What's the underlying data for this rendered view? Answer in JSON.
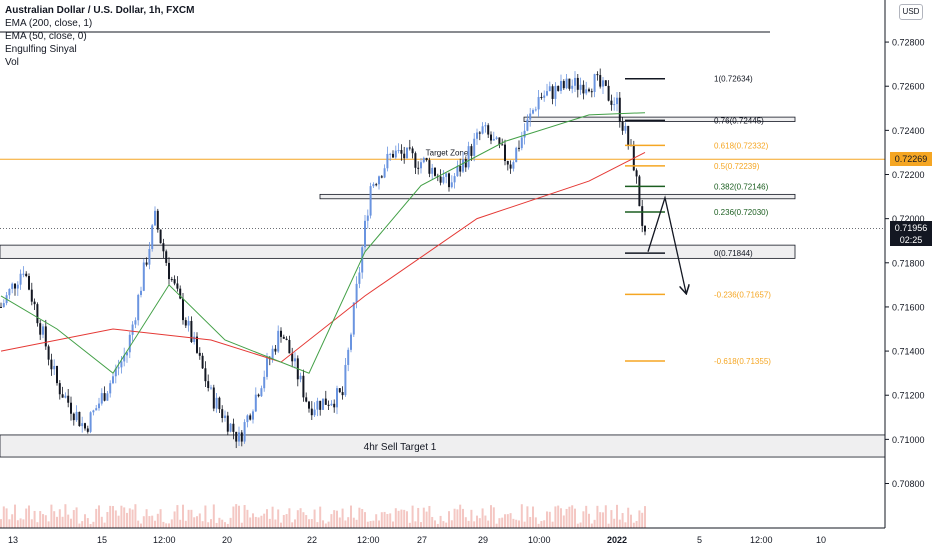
{
  "legend": {
    "symbol": "Australian Dollar / U.S. Dollar, 1h, FXCM",
    "indicators": [
      "EMA (200, close, 1)",
      "EMA (50, close, 0)",
      "Engulfing Sinyal",
      "Vol"
    ]
  },
  "currency_button": "USD",
  "price_tags": {
    "highlight": "0.72269",
    "current": "0.71956",
    "countdown": "02:25"
  },
  "colors": {
    "candle_up": "#6a94e0",
    "candle_down": "#131722",
    "ema200": "#e53935",
    "ema50": "#43a047",
    "fib_black": "#131722",
    "fib_orange": "#f5a623",
    "fib_green": "#1b5e20",
    "highlight_line": "#f5a623",
    "volume": "#f4c7c3"
  },
  "chart_data": {
    "type": "candlestick",
    "title": "Australian Dollar / U.S. Dollar, 1h, FXCM",
    "y_axis": {
      "ticks": [
        "0.72800",
        "0.72600",
        "0.72400",
        "0.72200",
        "0.72000",
        "0.71800",
        "0.71600",
        "0.71400",
        "0.71200",
        "0.71000",
        "0.70800"
      ],
      "range": [
        0.7068,
        0.729
      ]
    },
    "x_axis": {
      "ticks": [
        "13",
        "15",
        "12:00",
        "20",
        "22",
        "12:00",
        "27",
        "29",
        "10:00",
        "2022",
        "5",
        "12:00",
        "10"
      ]
    },
    "close_anchors": [
      {
        "bar": 0,
        "price": 0.716
      },
      {
        "bar": 8,
        "price": 0.7178
      },
      {
        "bar": 20,
        "price": 0.7125
      },
      {
        "bar": 30,
        "price": 0.7105
      },
      {
        "bar": 45,
        "price": 0.714
      },
      {
        "bar": 55,
        "price": 0.72
      },
      {
        "bar": 60,
        "price": 0.7176
      },
      {
        "bar": 75,
        "price": 0.712
      },
      {
        "bar": 85,
        "price": 0.71
      },
      {
        "bar": 100,
        "price": 0.715
      },
      {
        "bar": 110,
        "price": 0.7115
      },
      {
        "bar": 122,
        "price": 0.712
      },
      {
        "bar": 132,
        "price": 0.7215
      },
      {
        "bar": 140,
        "price": 0.723
      },
      {
        "bar": 152,
        "price": 0.7225
      },
      {
        "bar": 160,
        "price": 0.7215
      },
      {
        "bar": 172,
        "price": 0.724
      },
      {
        "bar": 182,
        "price": 0.7225
      },
      {
        "bar": 192,
        "price": 0.7255
      },
      {
        "bar": 202,
        "price": 0.726
      },
      {
        "bar": 212,
        "price": 0.7262
      },
      {
        "bar": 220,
        "price": 0.7252
      },
      {
        "bar": 226,
        "price": 0.7225
      },
      {
        "bar": 230,
        "price": 0.719
      }
    ],
    "series": [
      {
        "name": "EMA (200, close, 1)",
        "points": [
          {
            "bar": 0,
            "price": 0.714
          },
          {
            "bar": 40,
            "price": 0.715
          },
          {
            "bar": 75,
            "price": 0.7145
          },
          {
            "bar": 100,
            "price": 0.7135
          },
          {
            "bar": 130,
            "price": 0.7165
          },
          {
            "bar": 170,
            "price": 0.72
          },
          {
            "bar": 210,
            "price": 0.7217
          },
          {
            "bar": 230,
            "price": 0.723
          }
        ]
      },
      {
        "name": "EMA (50, close, 0)",
        "points": [
          {
            "bar": 0,
            "price": 0.7165
          },
          {
            "bar": 20,
            "price": 0.715
          },
          {
            "bar": 40,
            "price": 0.713
          },
          {
            "bar": 60,
            "price": 0.717
          },
          {
            "bar": 80,
            "price": 0.7145
          },
          {
            "bar": 110,
            "price": 0.713
          },
          {
            "bar": 130,
            "price": 0.7185
          },
          {
            "bar": 150,
            "price": 0.7215
          },
          {
            "bar": 180,
            "price": 0.7235
          },
          {
            "bar": 210,
            "price": 0.7247
          },
          {
            "bar": 230,
            "price": 0.7248
          }
        ]
      }
    ],
    "fib_levels": [
      {
        "label": "1(0.72634)",
        "price": 0.72634,
        "color": "black"
      },
      {
        "label": "0.76(0.72445)",
        "price": 0.72445,
        "color": "black"
      },
      {
        "label": "0.618(0.72332)",
        "price": 0.72332,
        "color": "orange"
      },
      {
        "label": "0.5(0.72239)",
        "price": 0.72239,
        "color": "orange"
      },
      {
        "label": "0.382(0.72146)",
        "price": 0.72146,
        "color": "green"
      },
      {
        "label": "0.236(0.72030)",
        "price": 0.7203,
        "color": "green"
      },
      {
        "label": "0(0.71844)",
        "price": 0.71844,
        "color": "black"
      },
      {
        "label": "-0.236(0.71657)",
        "price": 0.71657,
        "color": "orange"
      },
      {
        "label": "-0.618(0.71355)",
        "price": 0.71355,
        "color": "orange"
      }
    ],
    "zones": [
      {
        "label": "",
        "top": 0.7246,
        "bottom": 0.7244
      },
      {
        "label": "Target Zone",
        "top": 0.7211,
        "bottom": 0.7209
      },
      {
        "label": "",
        "top": 0.7188,
        "bottom": 0.7182
      },
      {
        "label": "4hr Sell Target 1",
        "top": 0.7102,
        "bottom": 0.7092
      }
    ],
    "horizontal_line": {
      "price": 0.72269
    },
    "current_price": {
      "price": 0.71956
    },
    "projection": [
      {
        "bar": 231,
        "price": 0.7185
      },
      {
        "bar": 236,
        "price": 0.721
      },
      {
        "bar": 243,
        "price": 0.7165
      }
    ]
  }
}
